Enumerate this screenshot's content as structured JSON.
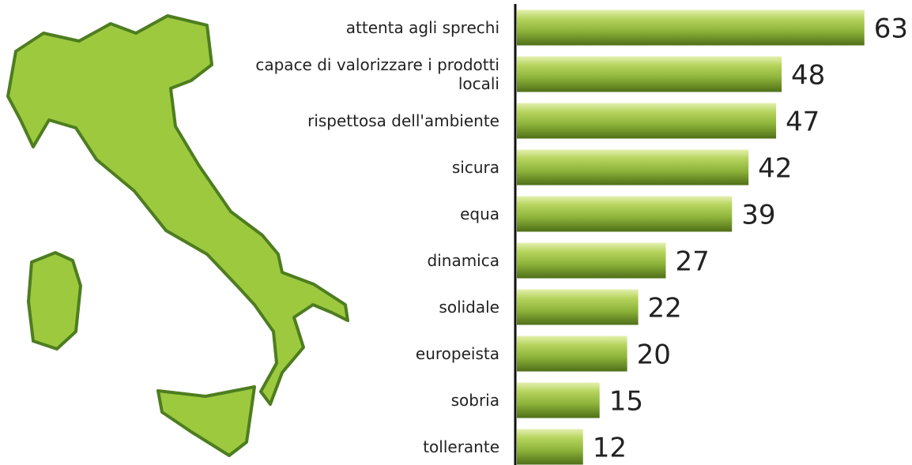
{
  "chart_data": {
    "type": "bar",
    "orientation": "horizontal",
    "categories": [
      "attenta agli sprechi",
      "capace di valorizzare i prodotti locali",
      "rispettosa dell'ambiente",
      "sicura",
      "equa",
      "dinamica",
      "solidale",
      "europeista",
      "sobria",
      "tollerante"
    ],
    "values": [
      63,
      48,
      47,
      42,
      39,
      27,
      22,
      20,
      15,
      12
    ],
    "color": "#8db33a"
  }
}
